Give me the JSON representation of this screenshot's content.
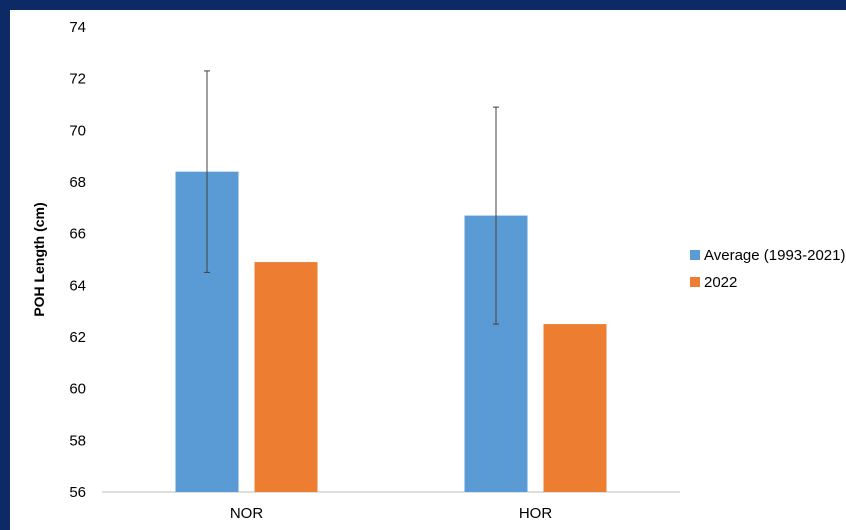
{
  "chart_data": {
    "type": "bar",
    "categories": [
      "NOR",
      "HOR"
    ],
    "series": [
      {
        "name": "Average (1993-2021)",
        "values": [
          68.4,
          66.7
        ],
        "error": [
          3.9,
          4.2
        ],
        "color": "#5b9bd5"
      },
      {
        "name": "2022",
        "values": [
          64.9,
          62.5
        ],
        "color": "#ed7d31"
      }
    ],
    "ylabel": "POH Length (cm)",
    "xlabel": "",
    "ylim": [
      56,
      74
    ],
    "yticks": [
      56,
      58,
      60,
      62,
      64,
      66,
      68,
      70,
      72,
      74
    ],
    "grid": false,
    "legend_position": "right"
  }
}
